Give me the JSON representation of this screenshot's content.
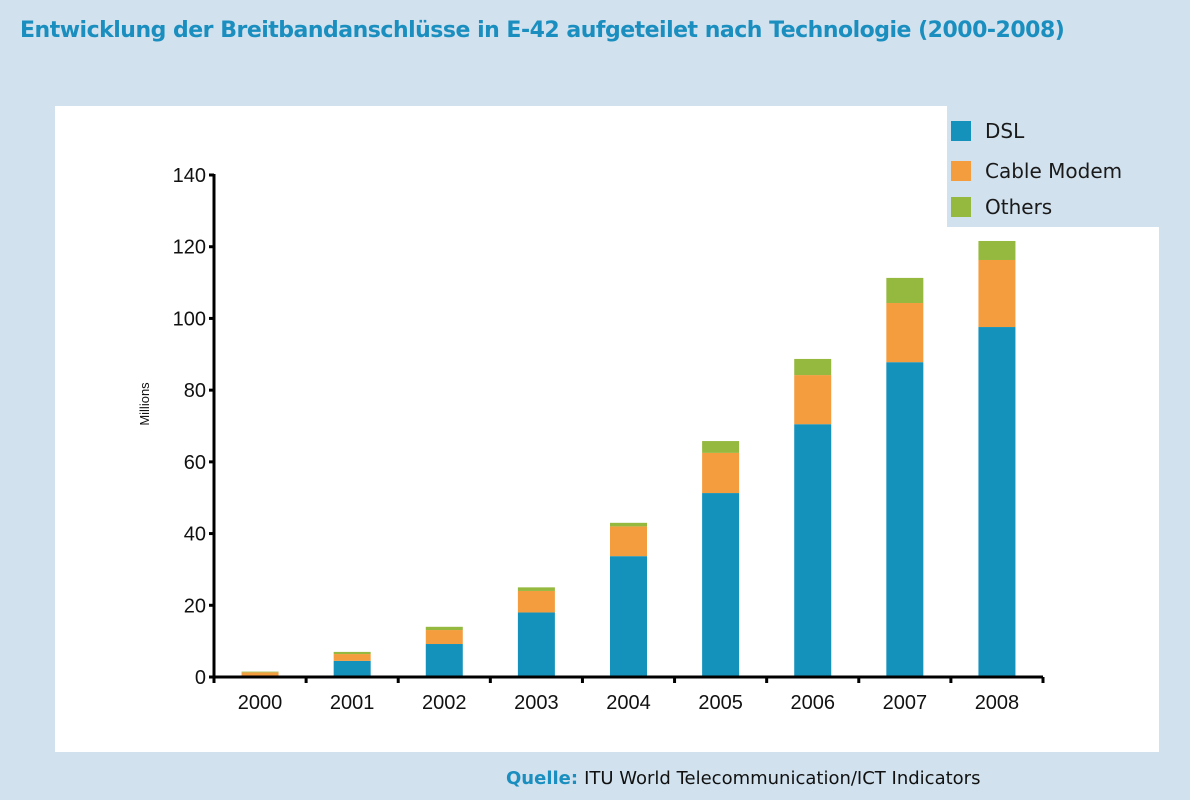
{
  "title": "Entwicklung der Breitbandanschlüsse in E-42 aufgeteilet nach Technologie (2000-2008)",
  "source": {
    "label": "Quelle:",
    "text": "ITU World Telecommunication/ICT Indicators"
  },
  "colors": {
    "DSL": "#1592bb",
    "Cable Modem": "#f49d3f",
    "Others": "#95b83f",
    "background": "#d1e1ee",
    "title": "#1a8fbf"
  },
  "chart_data": {
    "type": "bar",
    "stacked": true,
    "title": "Entwicklung der Breitbandanschlüsse in E-42 aufgeteilet nach Technologie (2000-2008)",
    "xlabel": "",
    "ylabel": "Millions",
    "ylim": [
      0,
      140
    ],
    "yticks": [
      0,
      20,
      40,
      60,
      80,
      100,
      120,
      140
    ],
    "categories": [
      "2000",
      "2001",
      "2002",
      "2003",
      "2004",
      "2005",
      "2006",
      "2007",
      "2008"
    ],
    "series": [
      {
        "name": "DSL",
        "values": [
          0.3,
          4.5,
          9.2,
          18.0,
          33.7,
          51.3,
          70.5,
          87.8,
          97.6
        ]
      },
      {
        "name": "Cable Modem",
        "values": [
          1.0,
          1.9,
          3.9,
          6.0,
          8.3,
          11.2,
          13.7,
          16.5,
          18.7
        ]
      },
      {
        "name": "Others",
        "values": [
          0.2,
          0.6,
          0.9,
          1.0,
          1.0,
          3.3,
          4.5,
          7.0,
          5.3
        ]
      }
    ],
    "legend": {
      "position": "top-right",
      "entries": [
        "DSL",
        "Cable Modem",
        "Others"
      ]
    },
    "grid": false
  }
}
